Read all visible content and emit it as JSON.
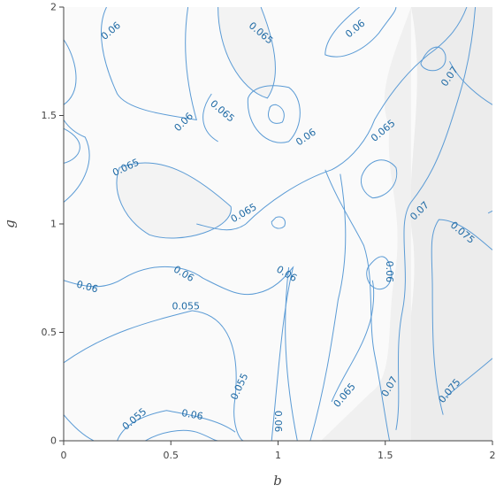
{
  "chart_data": {
    "type": "contour",
    "xlabel": "b",
    "ylabel": "g",
    "xlim": [
      0,
      2
    ],
    "ylim": [
      0,
      2
    ],
    "x_ticks": [
      "0",
      "0.5",
      "1",
      "1.5",
      "2"
    ],
    "y_ticks": [
      "0",
      "0.5",
      "1",
      "1.5",
      "2"
    ],
    "levels": [
      0.055,
      0.06,
      0.065,
      0.07,
      0.075
    ],
    "colors": {
      "line": "#5b9bd5",
      "label": "#1f6aa5",
      "fill_low": "#fafafa",
      "fill_high": "#ececec"
    },
    "contour_labels": [
      {
        "text": "0.06",
        "x": 0.22,
        "y": 1.89,
        "angle": -40
      },
      {
        "text": "0.065",
        "x": 0.92,
        "y": 1.88,
        "angle": 40
      },
      {
        "text": "0.06",
        "x": 1.36,
        "y": 1.9,
        "angle": -40
      },
      {
        "text": "0.07",
        "x": 1.8,
        "y": 1.68,
        "angle": -55
      },
      {
        "text": "0.065",
        "x": 0.74,
        "y": 1.52,
        "angle": 40
      },
      {
        "text": "0.06",
        "x": 0.56,
        "y": 1.47,
        "angle": -45
      },
      {
        "text": "0.06",
        "x": 1.13,
        "y": 1.4,
        "angle": -35
      },
      {
        "text": "0.065",
        "x": 1.49,
        "y": 1.43,
        "angle": -40
      },
      {
        "text": "0.065",
        "x": 0.29,
        "y": 1.26,
        "angle": -25
      },
      {
        "text": "0.065",
        "x": 0.84,
        "y": 1.05,
        "angle": -30
      },
      {
        "text": "0.07",
        "x": 1.66,
        "y": 1.06,
        "angle": -45
      },
      {
        "text": "0.075",
        "x": 1.86,
        "y": 0.96,
        "angle": 40
      },
      {
        "text": "0.06",
        "x": 0.11,
        "y": 0.71,
        "angle": 15
      },
      {
        "text": "0.06",
        "x": 0.56,
        "y": 0.77,
        "angle": 30
      },
      {
        "text": "0.06",
        "x": 1.04,
        "y": 0.77,
        "angle": 30
      },
      {
        "text": "0.06",
        "x": 1.52,
        "y": 0.78,
        "angle": 90
      },
      {
        "text": "0.055",
        "x": 0.57,
        "y": 0.62,
        "angle": 0
      },
      {
        "text": "0.055",
        "x": 0.82,
        "y": 0.25,
        "angle": -65
      },
      {
        "text": "0.065",
        "x": 1.31,
        "y": 0.21,
        "angle": -50
      },
      {
        "text": "0.07",
        "x": 1.52,
        "y": 0.25,
        "angle": -60
      },
      {
        "text": "0.075",
        "x": 1.8,
        "y": 0.23,
        "angle": -50
      },
      {
        "text": "0.055",
        "x": 0.33,
        "y": 0.1,
        "angle": -40
      },
      {
        "text": "0.06",
        "x": 0.6,
        "y": 0.12,
        "angle": 10
      },
      {
        "text": "0.06",
        "x": 1.0,
        "y": 0.09,
        "angle": 90
      }
    ]
  }
}
